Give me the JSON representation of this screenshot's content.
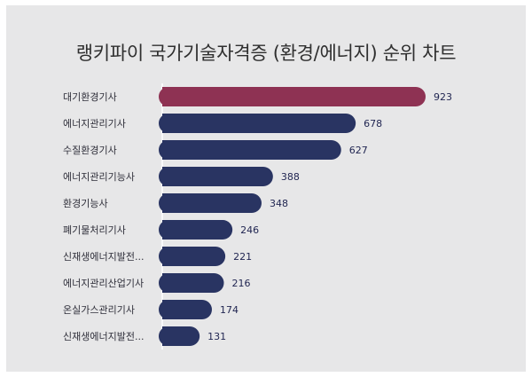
{
  "title": "랭키파이 국가기술자격증 (환경/에너지) 순위 차트",
  "colors": {
    "highlight": "#8e3253",
    "bar": "#293462",
    "background": "#e7e7e8"
  },
  "chart_data": {
    "type": "bar",
    "orientation": "horizontal",
    "title": "랭키파이 국가기술자격증 (환경/에너지) 순위 차트",
    "categories": [
      "대기환경기사",
      "에너지관리기사",
      "수질환경기사",
      "에너지관리기능사",
      "환경기능사",
      "폐기물처리기사",
      "신재생에너지발전...",
      "에너지관리산업기사",
      "온실가스관리기사",
      "신재생에너지발전..."
    ],
    "values": [
      923,
      678,
      627,
      388,
      348,
      246,
      221,
      216,
      174,
      131
    ],
    "xlabel": "",
    "ylabel": "",
    "xlim": [
      0,
      923
    ],
    "highlight_index": 0,
    "grid": false,
    "legend": "none"
  }
}
